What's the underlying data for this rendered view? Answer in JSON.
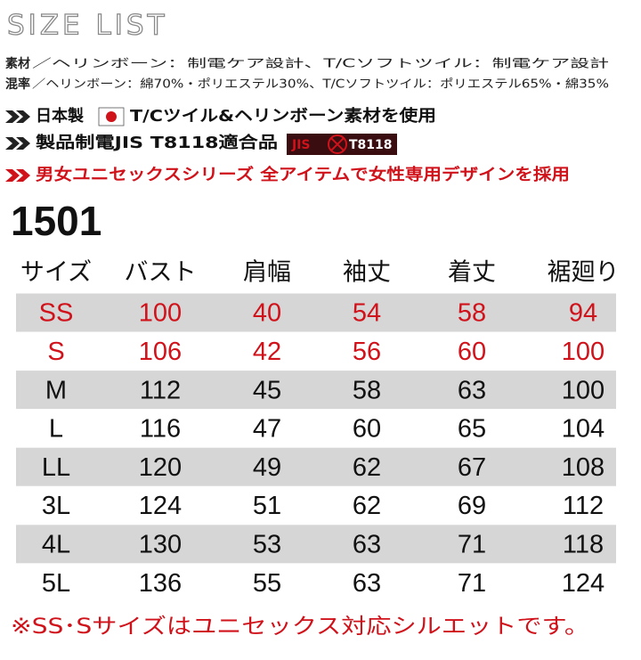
{
  "header": {
    "title": "SIZE LIST"
  },
  "material": [
    {
      "label": "素材",
      "text": "／ヘリンボーン：制電ケア設計、T/Cソフトツイル：制電ケア設計"
    },
    {
      "label": "混率",
      "text": "／ヘリンボーン：綿70%・ポリエステル30%、T/Cソフトツイル：ポリエステル65%・綿35%"
    }
  ],
  "features": [
    {
      "lead": "日本製",
      "text": "T/Cツイル&ヘリンボーン素材を使用"
    },
    {
      "lead": "製品制電JIS T8118適合品",
      "badge": [
        "JIS",
        "T8118"
      ]
    },
    {
      "lead": "男女ユニセックスシリーズ 全アイテムで女性専用デザインを採用"
    }
  ],
  "model": "1501",
  "table": {
    "columns": [
      "サイズ",
      "バスト",
      "肩幅",
      "袖丈",
      "着丈",
      "裾廻り"
    ],
    "rows": [
      [
        "SS",
        "100",
        "40",
        "54",
        "58",
        "94"
      ],
      [
        "S",
        "106",
        "42",
        "56",
        "60",
        "100"
      ],
      [
        "M",
        "112",
        "45",
        "58",
        "63",
        "100"
      ],
      [
        "L",
        "116",
        "47",
        "60",
        "65",
        "104"
      ],
      [
        "LL",
        "120",
        "49",
        "62",
        "67",
        "108"
      ],
      [
        "3L",
        "124",
        "51",
        "62",
        "69",
        "112"
      ],
      [
        "4L",
        "130",
        "53",
        "63",
        "71",
        "118"
      ],
      [
        "5L",
        "136",
        "55",
        "63",
        "71",
        "124"
      ]
    ]
  },
  "note": "※SS･Sサイズはユニセックス対応シルエットです。"
}
